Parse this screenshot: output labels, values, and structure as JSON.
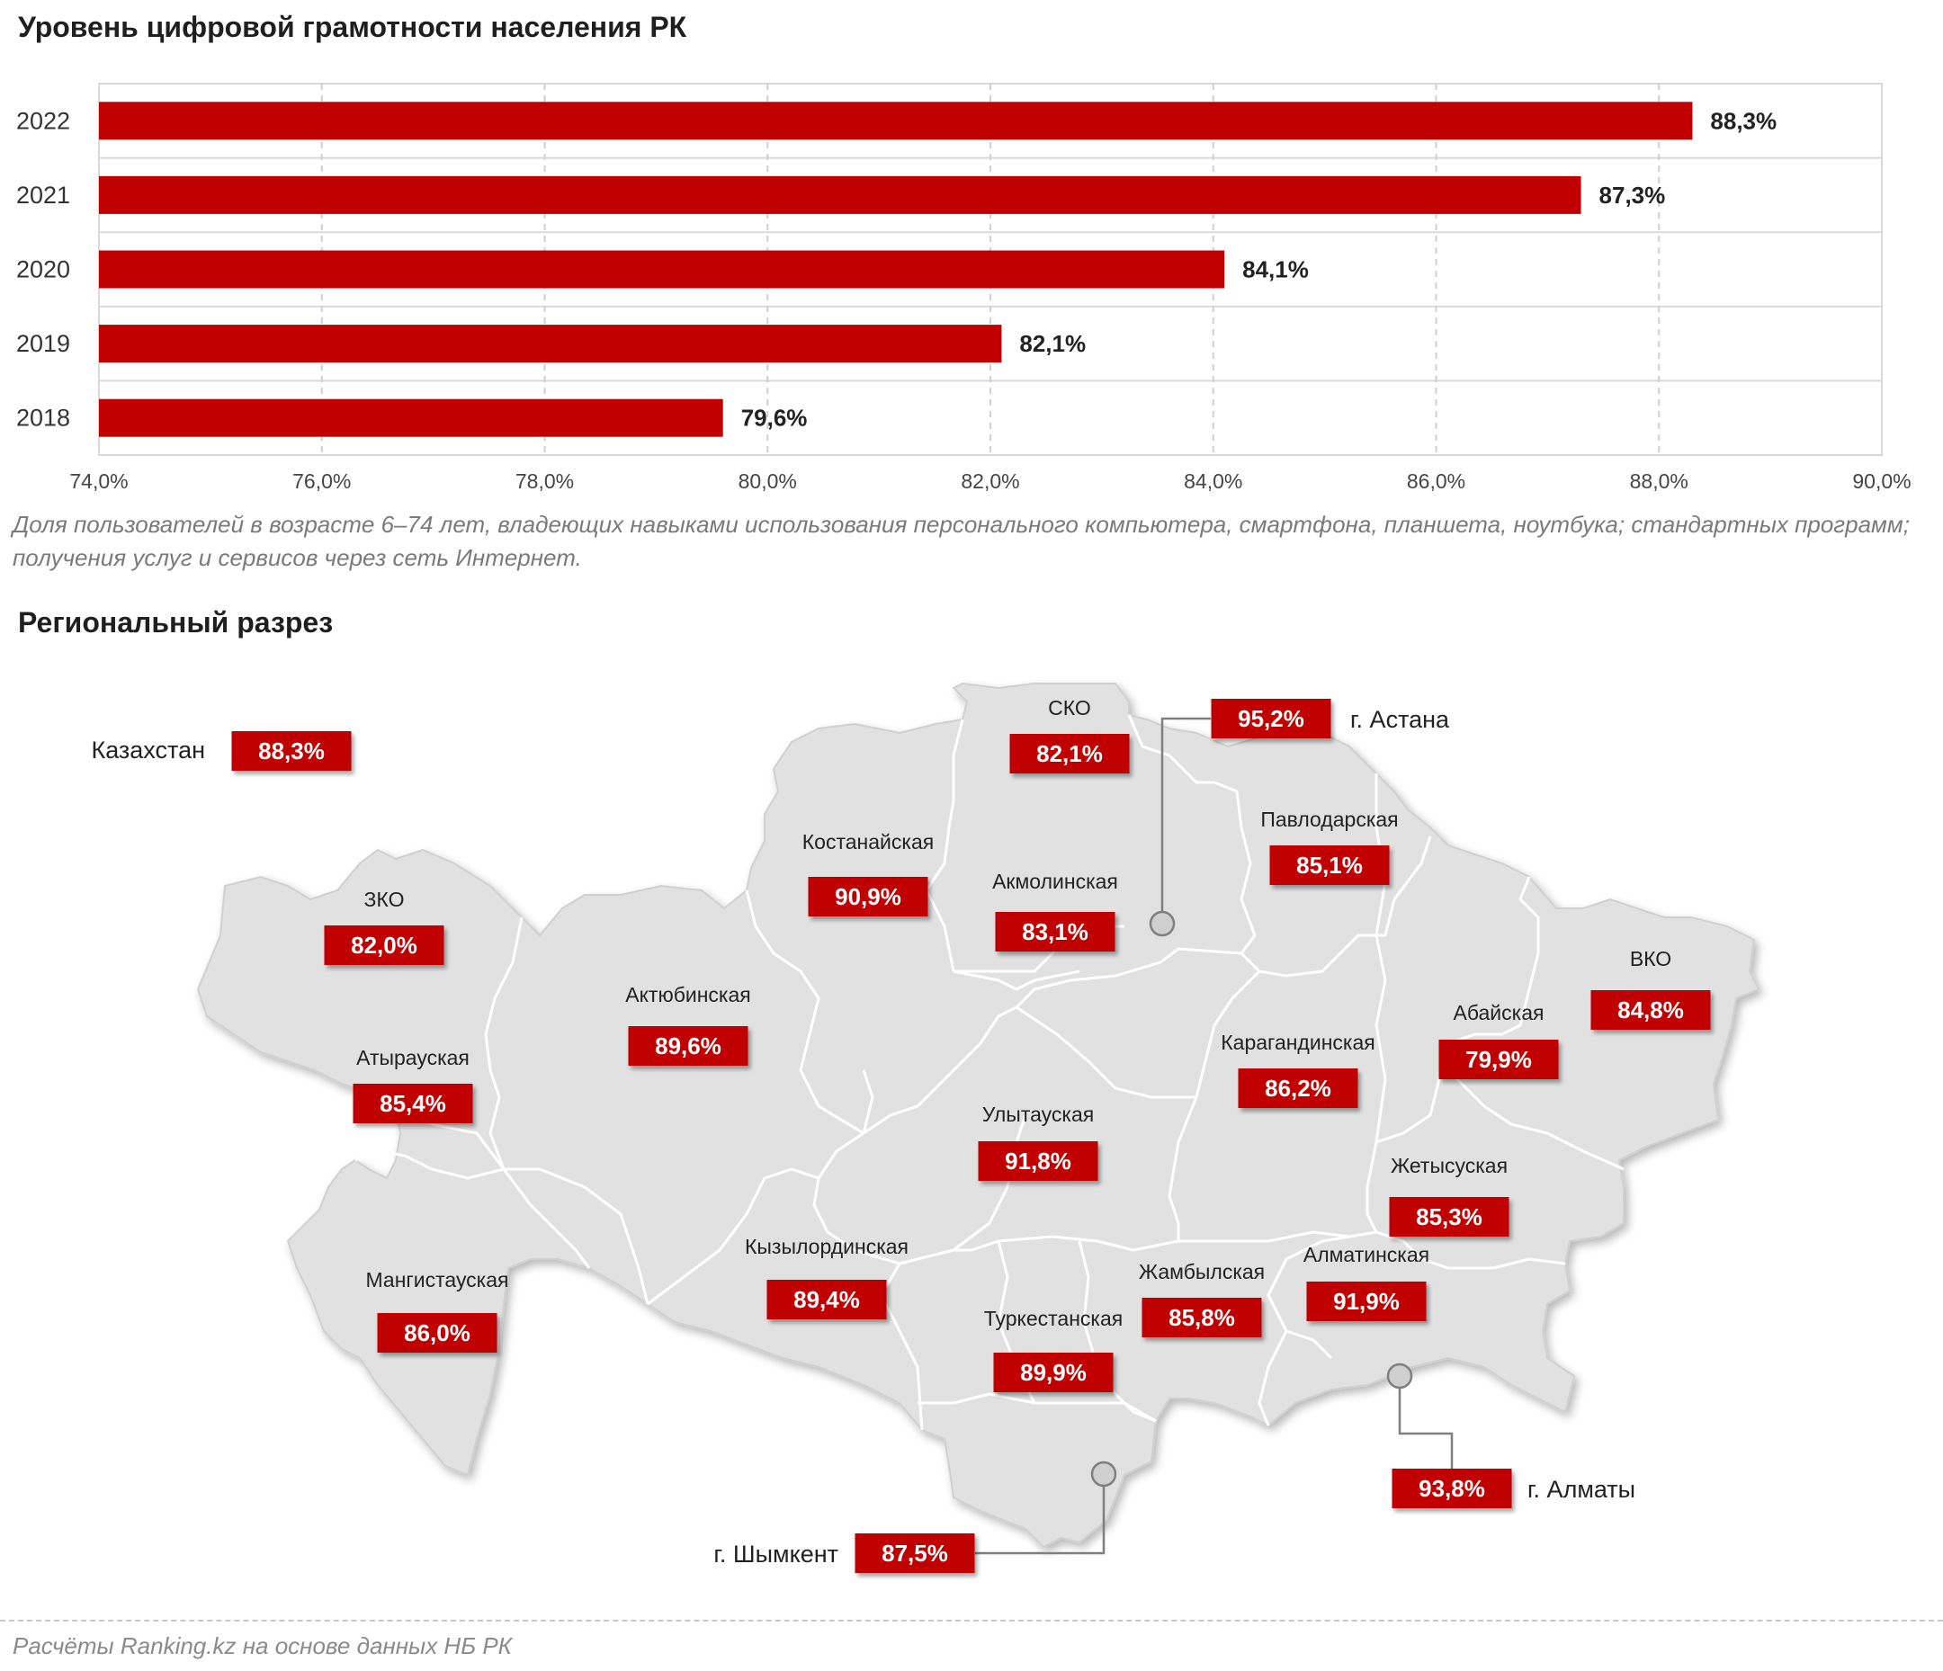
{
  "title": "Уровень цифровой грамотности населения РК",
  "note": "Доля пользователей в возрасте 6–74 лет, владеющих навыками использования персонального компьютера, смартфона, планшета, ноутбука; стандартных программ; получения услуг и сервисов через сеть Интернет.",
  "regional_title": "Региональный разрез",
  "source": "Расчёты Ranking.kz на основе данных НБ РК",
  "colors": {
    "bar": "#c00000",
    "map_fill": "#e1e1e1",
    "map_border": "#ffffff",
    "label_bg": "#c00000"
  },
  "chart_data": [
    {
      "type": "bar",
      "orientation": "horizontal",
      "categories": [
        "2022",
        "2021",
        "2020",
        "2019",
        "2018"
      ],
      "values": [
        88.3,
        87.3,
        84.1,
        82.1,
        79.6
      ],
      "value_labels": [
        "88,3%",
        "87,3%",
        "84,1%",
        "82,1%",
        "79,6%"
      ],
      "xlim": [
        74,
        90
      ],
      "xticks": [
        74,
        76,
        78,
        80,
        82,
        84,
        86,
        88,
        90
      ],
      "xtick_labels": [
        "74,0%",
        "76,0%",
        "78,0%",
        "80,0%",
        "82,0%",
        "84,0%",
        "86,0%",
        "88,0%",
        "90,0%"
      ],
      "grid": true
    },
    {
      "type": "map",
      "country": {
        "name": "Казахстан",
        "value": "88,3%"
      },
      "regions": [
        {
          "name": "СКО",
          "value": "82,1%"
        },
        {
          "name": "Костанайская",
          "value": "90,9%"
        },
        {
          "name": "Акмолинская",
          "value": "83,1%"
        },
        {
          "name": "Павлодарская",
          "value": "85,1%"
        },
        {
          "name": "ЗКО",
          "value": "82,0%"
        },
        {
          "name": "Актюбинская",
          "value": "89,6%"
        },
        {
          "name": "Атырауская",
          "value": "85,4%"
        },
        {
          "name": "Карагандинская",
          "value": "86,2%"
        },
        {
          "name": "Абайская",
          "value": "79,9%"
        },
        {
          "name": "ВКО",
          "value": "84,8%"
        },
        {
          "name": "Улытауская",
          "value": "91,8%"
        },
        {
          "name": "Жетысуская",
          "value": "85,3%"
        },
        {
          "name": "Кызылординская",
          "value": "89,4%"
        },
        {
          "name": "Мангистауская",
          "value": "86,0%"
        },
        {
          "name": "Жамбылская",
          "value": "85,8%"
        },
        {
          "name": "Алматинская",
          "value": "91,9%"
        },
        {
          "name": "Туркестанская",
          "value": "89,9%"
        }
      ],
      "cities": [
        {
          "name": "г. Астана",
          "value": "95,2%"
        },
        {
          "name": "г. Алматы",
          "value": "93,8%"
        },
        {
          "name": "г. Шымкент",
          "value": "87,5%"
        }
      ]
    }
  ]
}
